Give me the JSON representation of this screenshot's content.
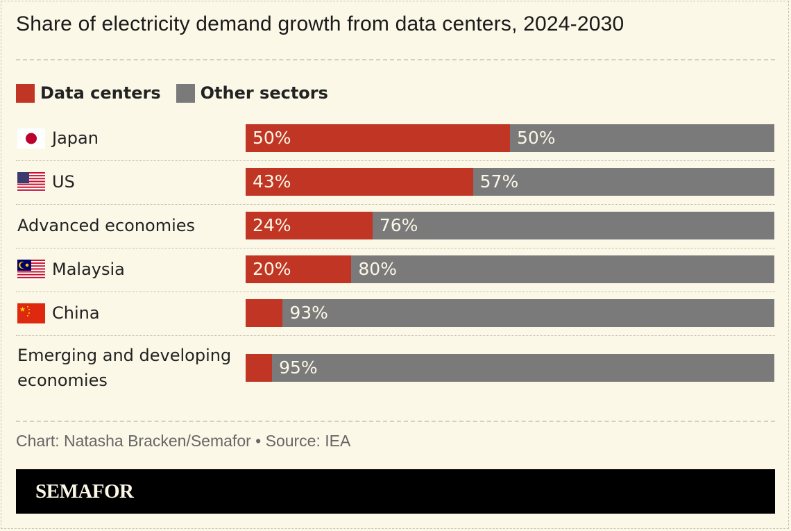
{
  "chart_data": {
    "type": "bar",
    "orientation": "horizontal",
    "stacked": true,
    "title": "Share of electricity demand growth from data centers, 2024-2030",
    "categories": [
      "Japan",
      "US",
      "Advanced economies",
      "Malaysia",
      "China",
      "Emerging and developing economies"
    ],
    "flags": [
      "japan-flag",
      "us-flag",
      "",
      "malaysia-flag",
      "china-flag",
      ""
    ],
    "series": [
      {
        "name": "Data centers",
        "color": "#c03523",
        "values": [
          50,
          43,
          24,
          20,
          7,
          5
        ],
        "labels": [
          "50%",
          "43%",
          "24%",
          "20%",
          "",
          ""
        ]
      },
      {
        "name": "Other sectors",
        "color": "#7a7a7a",
        "values": [
          50,
          57,
          76,
          80,
          93,
          95
        ],
        "labels": [
          "50%",
          "57%",
          "76%",
          "80%",
          "93%",
          "95%"
        ]
      }
    ],
    "xlim": [
      0,
      100
    ],
    "legend": "top-left",
    "grid": false
  },
  "footer": {
    "source": "Chart: Natasha Bracken/Semafor • Source: IEA",
    "brand": "SEMAFOR"
  }
}
